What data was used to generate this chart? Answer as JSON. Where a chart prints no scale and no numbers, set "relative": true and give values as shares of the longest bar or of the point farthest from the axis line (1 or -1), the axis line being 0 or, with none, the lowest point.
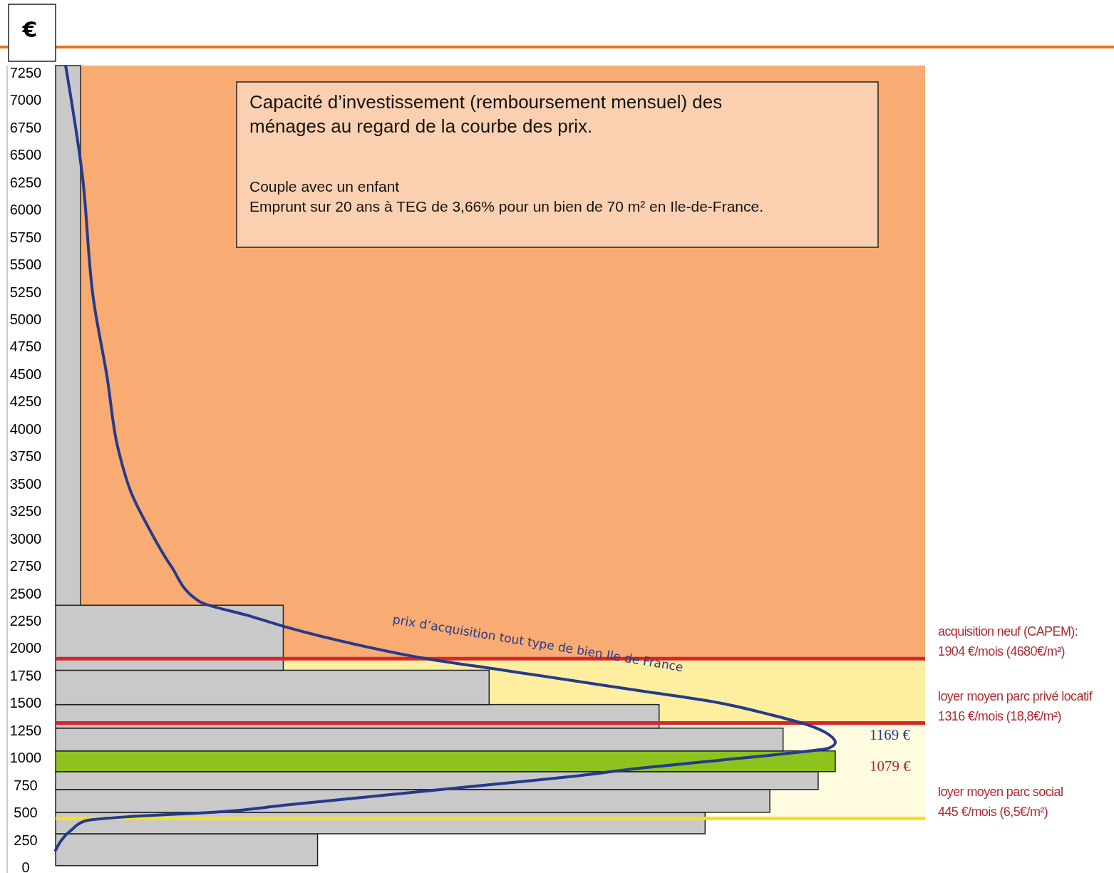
{
  "chart_data": {
    "type": "histogram",
    "orientation": "horizontal",
    "relative": true,
    "title": "Capacité d’investissement (remboursement mensuel) des ménages au regard de la courbe des prix.",
    "subtitle": "Couple avec un enfant\nEmprunt sur 20 ans à TEG de 3,66% pour un bien de 70 m² en Ile-de-France.",
    "ylabel": "€",
    "bins": [
      15,
      306,
      502,
      710,
      873,
      1062,
      1270,
      1485,
      1798,
      2391,
      7315
    ],
    "values": [
      0.336,
      0.833,
      0.916,
      0.978,
      1,
      0.933,
      0.774,
      0.556,
      0.292,
      0.032
    ],
    "colors": [
      "#c9c9c9",
      "#c9c9c9",
      "#c9c9c9",
      "#c9c9c9",
      "#8dc21f",
      "#c9c9c9",
      "#c9c9c9",
      "#c9c9c9",
      "#c9c9c9",
      "#c9c9c9"
    ],
    "series": [
      {
        "type": "line",
        "name": "prix d’acquisition tout type de bien Ile de France",
        "color": "#253a8c",
        "x": [
          156,
          339,
          423,
          469,
          502,
          567,
          632,
          697,
          762,
          827,
          905,
          971,
          1036,
          1088,
          1140,
          1186,
          1283,
          1394,
          1511,
          1609,
          1707,
          1804,
          1902,
          2032,
          2195,
          2293,
          2423,
          2749,
          3075,
          3400,
          3824,
          4475,
          5159,
          6332,
          7309
        ],
        "values": [
          0,
          0.02,
          0.038,
          0.112,
          0.203,
          0.294,
          0.386,
          0.477,
          0.569,
          0.66,
          0.751,
          0.843,
          0.934,
          0.992,
          1,
          0.996,
          0.971,
          0.916,
          0.843,
          0.751,
          0.66,
          0.569,
          0.477,
          0.386,
          0.294,
          0.249,
          0.185,
          0.148,
          0.121,
          0.098,
          0.08,
          0.066,
          0.049,
          0.034,
          0.013
        ]
      }
    ],
    "ylim": [
      0,
      7315
    ],
    "yticks": [
      0,
      250,
      500,
      750,
      1000,
      1250,
      1500,
      1750,
      2000,
      2250,
      2500,
      2750,
      3000,
      3250,
      3500,
      3750,
      4000,
      4250,
      4500,
      4750,
      5000,
      5250,
      5500,
      5750,
      6000,
      6250,
      6500,
      6750,
      7000,
      7250
    ],
    "bands": [
      {
        "axis": "y",
        "from": 1904,
        "to": 7315,
        "color": "#f8ab72"
      },
      {
        "axis": "y",
        "from": 1316,
        "to": 1904,
        "color": "#fdeea0"
      },
      {
        "axis": "y",
        "from": 445,
        "to": 1316,
        "color": "#fffbdf"
      }
    ],
    "ref_lines": [
      {
        "axis": "y",
        "value": 1904,
        "label": "acquisition neuf (CAPEM):\n1904 €/mois (4680€/m²)",
        "color": "#d7262e"
      },
      {
        "axis": "y",
        "value": 1316,
        "label": "loyer moyen parc privé locatif\n1316 €/mois (18,8€/m²)",
        "color": "#d7262e"
      },
      {
        "axis": "y",
        "value": 445,
        "label": "loyer moyen parc social\n445 €/mois (6,5€/m²)",
        "color": "#f5e31a"
      }
    ],
    "annotations": [
      "1169 €",
      "1079 €"
    ]
  }
}
